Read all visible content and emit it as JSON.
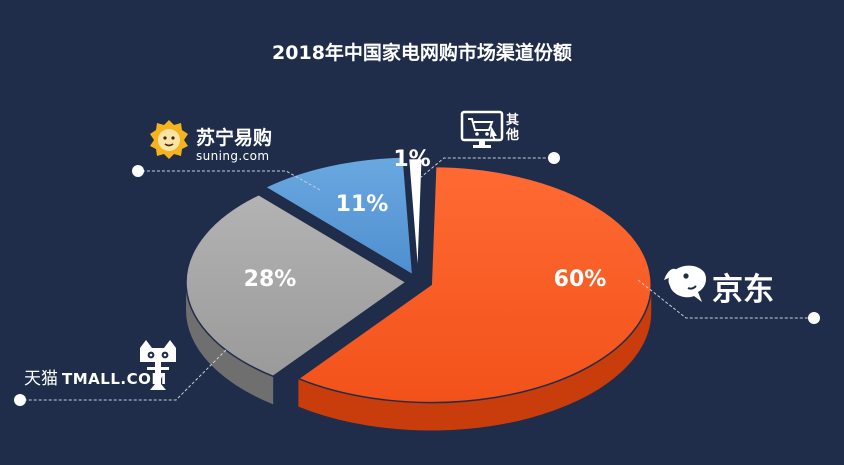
{
  "chart_data": {
    "type": "pie",
    "title": "2018年中国家电网购市场渠道份额",
    "slices": [
      {
        "label": "京东",
        "value": 60,
        "display": "60%",
        "color": "#ff5722"
      },
      {
        "label": "天猫 TMALL.COM",
        "value": 28,
        "display": "28%",
        "color": "#a6a6a6"
      },
      {
        "label": "苏宁易购 suning.com",
        "value": 11,
        "display": "11%",
        "color": "#5b9bd5"
      },
      {
        "label": "其他",
        "value": 1,
        "display": "1%",
        "color": "#ffffff"
      }
    ]
  },
  "brands": {
    "jd": "京东",
    "tmall_cn": "天猫",
    "tmall_en": "TMALL.COM",
    "suning_cn": "苏宁易购",
    "suning_en": "suning.com",
    "other": "其他"
  },
  "icons": {
    "jd": "jd-dog-logo-icon",
    "tmall": "tmall-cat-logo-icon",
    "suning": "suning-lion-logo-icon",
    "other": "shopping-cart-monitor-icon"
  },
  "colors": {
    "background": "#1f2d4a"
  }
}
